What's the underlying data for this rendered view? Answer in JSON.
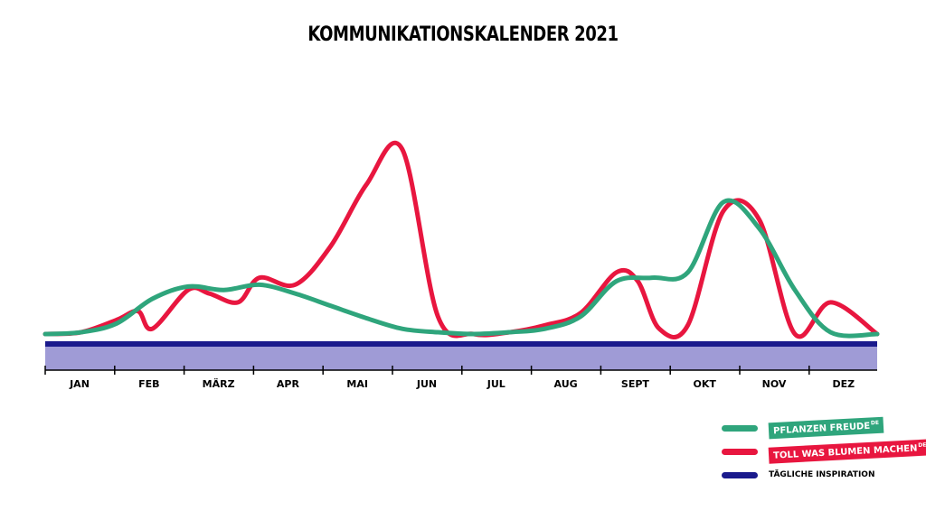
{
  "chart_data": {
    "type": "line",
    "title": "KOMMUNIKATIONSKALENDER 2021",
    "xlabel": "",
    "ylabel": "",
    "categories": [
      "JAN",
      "FEB",
      "MÄRZ",
      "APR",
      "MAI",
      "JUN",
      "JUL",
      "AUG",
      "SEPT",
      "OKT",
      "NOV",
      "DEZ"
    ],
    "ylim": [
      0,
      10
    ],
    "grid": false,
    "legend_position": "bottom-right",
    "series": [
      {
        "name": "PFLANZEN FREUDE",
        "color": "#2fa57c",
        "x": [
          0.0,
          0.5,
          1.0,
          1.5,
          2.0,
          2.5,
          3.0,
          3.5,
          4.0,
          4.5,
          5.0,
          5.5,
          6.0,
          6.5,
          7.0,
          7.5,
          8.0,
          8.5,
          9.0,
          9.5,
          10.0,
          10.5,
          11.0,
          11.5
        ],
        "values": [
          0.0,
          0.1,
          0.6,
          2.0,
          2.7,
          2.5,
          2.8,
          2.3,
          1.6,
          0.9,
          0.3,
          0.1,
          0.0,
          0.1,
          0.3,
          1.0,
          3.0,
          3.2,
          3.5,
          7.5,
          6.0,
          2.5,
          0.1,
          0.0
        ]
      },
      {
        "name": "TOLL WAS BLUMEN MACHEN",
        "color": "#e8163f",
        "x": [
          0.0,
          0.5,
          1.0,
          1.3,
          1.5,
          2.0,
          2.3,
          2.7,
          3.0,
          3.5,
          4.0,
          4.5,
          5.0,
          5.5,
          6.0,
          6.5,
          7.0,
          7.5,
          8.0,
          8.3,
          8.6,
          9.0,
          9.5,
          10.0,
          10.5,
          11.0,
          11.5
        ],
        "values": [
          0.0,
          0.1,
          0.8,
          1.3,
          0.3,
          2.5,
          2.3,
          1.8,
          3.2,
          2.8,
          5.0,
          8.5,
          10.5,
          1.0,
          0.0,
          0.1,
          0.5,
          1.2,
          3.5,
          3.0,
          0.3,
          0.5,
          7.0,
          6.5,
          0.0,
          1.8,
          0.0
        ]
      },
      {
        "name": "TÄGLICHE INSPIRATION",
        "color": "#1a1a8c",
        "x": [
          0.0,
          11.5
        ],
        "values": [
          -0.5,
          -0.5
        ]
      }
    ],
    "band_color": "#9f9bd6"
  },
  "legend": {
    "items": [
      {
        "label_main": "PFLANZEN FREUDE",
        "label_tld": "DE",
        "line_color": "#2fa57c",
        "badge_color": "#2fa57c"
      },
      {
        "label_main": "TOLL WAS BLUMEN MACHEN",
        "label_tld": "DE",
        "line_color": "#e8163f",
        "badge_color": "#e8163f"
      },
      {
        "label_main": "TÄGLICHE INSPIRATION",
        "line_color": "#1a1a8c"
      }
    ]
  }
}
